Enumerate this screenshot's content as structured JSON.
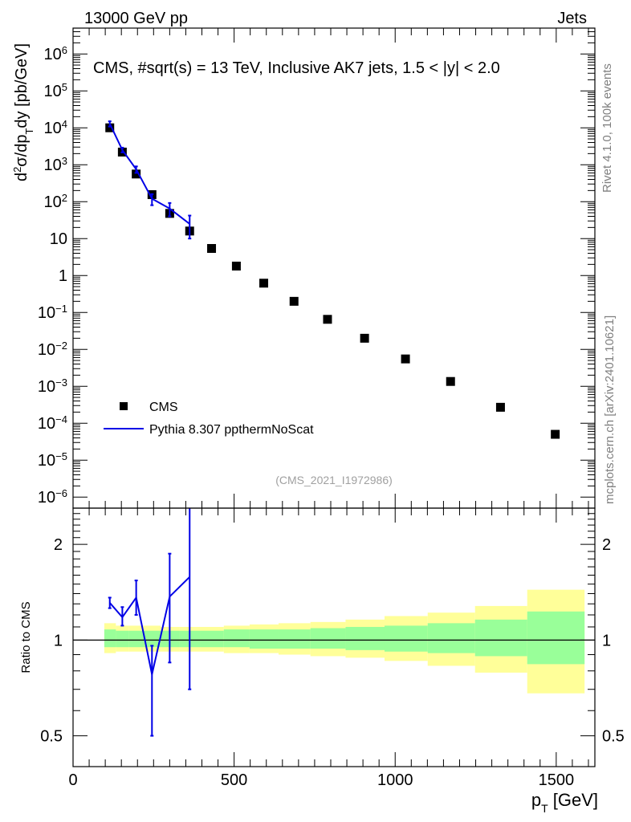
{
  "header": {
    "energy_label": "13000 GeV pp",
    "category_label": "Jets",
    "plot_title": "CMS, #sqrt(s) = 13 TeV, Inclusive AK7 jets, 1.5 < |y| < 2.0",
    "side_label_top": "Rivet 4.1.0,  100k events",
    "side_label_bottom": "mcplots.cern.ch [arXiv:2401.10621]",
    "analysis_id": "(CMS_2021_I1972986)"
  },
  "colors": {
    "data": "#000000",
    "mc": "#0000e6",
    "band_inner": "#99ff99",
    "band_outer": "#ffff99",
    "side_text": "#808080"
  },
  "chart_data": [
    {
      "type": "scatter",
      "name": "main-panel",
      "ylabel": "d²σ/dp_T dy [pb/GeV]",
      "yscale": "log",
      "xlim": [
        0,
        1620
      ],
      "ylim": [
        5e-07,
        5000000.0
      ],
      "y_tick_labels": [
        "10^-6",
        "10^-5",
        "10^-4",
        "10^-3",
        "10^-2",
        "10^-1",
        "1",
        "10",
        "10^2",
        "10^3",
        "10^4",
        "10^5",
        "10^6"
      ],
      "legend": [
        {
          "name": "CMS",
          "style": "marker"
        },
        {
          "name": "Pythia 8.307 ppthermNoScat",
          "style": "line"
        }
      ],
      "series": [
        {
          "name": "CMS",
          "x": [
            114,
            153,
            196,
            245,
            300,
            362,
            430,
            507,
            592,
            686,
            790,
            905,
            1032,
            1172,
            1327,
            1497
          ],
          "y": [
            10000,
            2200,
            560,
            155,
            48,
            16,
            5.4,
            1.8,
            0.62,
            0.2,
            0.065,
            0.02,
            0.0055,
            0.00135,
            0.00027,
            5e-05
          ]
        },
        {
          "name": "Pythia 8.307 ppthermNoScat",
          "x": [
            114,
            153,
            196,
            245,
            300,
            362
          ],
          "y": [
            13000,
            2500,
            750,
            120,
            65,
            25
          ],
          "yerr_low": [
            10800,
            2150,
            600,
            80,
            40,
            10
          ],
          "yerr_high": [
            15000,
            2900,
            900,
            160,
            92,
            42
          ]
        }
      ]
    },
    {
      "type": "line",
      "name": "ratio-panel",
      "ylabel": "Ratio to CMS",
      "xlabel": "p_T [GeV]",
      "yscale": "log",
      "xlim": [
        0,
        1620
      ],
      "ylim": [
        0.4,
        2.6
      ],
      "y_tick_labels": [
        "0.5",
        "1",
        "2"
      ],
      "x_tick_labels": [
        "0",
        "500",
        "1000",
        "1500"
      ],
      "bin_edges": [
        97,
        133,
        174,
        220,
        272,
        330,
        395,
        468,
        548,
        638,
        737,
        846,
        967,
        1101,
        1248,
        1410,
        1588
      ],
      "band_inner": {
        "low": [
          0.95,
          0.95,
          0.95,
          0.95,
          0.95,
          0.95,
          0.95,
          0.95,
          0.94,
          0.94,
          0.94,
          0.93,
          0.92,
          0.91,
          0.89,
          0.84
        ],
        "high": [
          1.08,
          1.07,
          1.07,
          1.07,
          1.07,
          1.07,
          1.07,
          1.08,
          1.08,
          1.08,
          1.09,
          1.1,
          1.11,
          1.13,
          1.16,
          1.23
        ]
      },
      "band_outer": {
        "low": [
          0.91,
          0.92,
          0.92,
          0.92,
          0.92,
          0.92,
          0.92,
          0.91,
          0.91,
          0.9,
          0.89,
          0.88,
          0.86,
          0.83,
          0.79,
          0.68
        ],
        "high": [
          1.13,
          1.11,
          1.11,
          1.11,
          1.1,
          1.1,
          1.1,
          1.11,
          1.12,
          1.13,
          1.14,
          1.16,
          1.19,
          1.22,
          1.28,
          1.44
        ]
      },
      "series": [
        {
          "name": "Pythia 8.307 ppthermNoScat",
          "x": [
            114,
            153,
            196,
            245,
            300,
            362
          ],
          "y": [
            1.31,
            1.18,
            1.36,
            0.78,
            1.37,
            1.58
          ],
          "yerr_low": [
            1.26,
            1.11,
            1.2,
            0.5,
            0.85,
            0.7
          ],
          "yerr_high": [
            1.36,
            1.27,
            1.54,
            0.96,
            1.87,
            2.6
          ]
        }
      ]
    }
  ]
}
